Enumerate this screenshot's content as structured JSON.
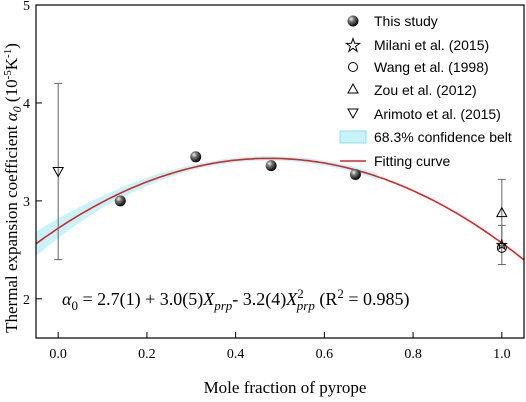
{
  "chart_data": {
    "type": "scatter",
    "title": "",
    "xlabel": "Mole fraction of pyrope",
    "ylabel_main": "Thermal expansion coefficient ",
    "ylabel_symbol": "α",
    "ylabel_sub": "0",
    "ylabel_unit_open": " (10",
    "ylabel_unit_exp1": "-5",
    "ylabel_unit_mid": "K",
    "ylabel_unit_exp2": "-1",
    "ylabel_unit_close": ")",
    "xlim": [
      -0.05,
      1.05
    ],
    "ylim": [
      1.6,
      5.0
    ],
    "xticks": [
      0.0,
      0.2,
      0.4,
      0.6,
      0.8,
      1.0
    ],
    "xtick_labels": [
      "0.0",
      "0.2",
      "0.4",
      "0.6",
      "0.8",
      "1.0"
    ],
    "yticks": [
      2,
      3,
      4,
      5
    ],
    "ytick_labels": [
      "2",
      "3",
      "4",
      "5"
    ],
    "grid": false,
    "legend_position": "top-right",
    "series": [
      {
        "name": "This study",
        "marker": "filled-sphere",
        "points": [
          {
            "x": 0.14,
            "y": 3.0,
            "err": 0.03
          },
          {
            "x": 0.31,
            "y": 3.45,
            "err": 0.03
          },
          {
            "x": 0.48,
            "y": 3.36,
            "err": 0.03
          },
          {
            "x": 0.67,
            "y": 3.27,
            "err": 0.03
          }
        ]
      },
      {
        "name": "Milani et al. (2015)",
        "marker": "star",
        "points": [
          {
            "x": 1.0,
            "y": 2.55,
            "err": 0.2
          }
        ]
      },
      {
        "name": "Wang et al. (1998)",
        "marker": "circle",
        "points": [
          {
            "x": 1.0,
            "y": 2.52,
            "err": 0.0
          }
        ]
      },
      {
        "name": "Zou et al. (2012)",
        "marker": "triangle-up",
        "points": [
          {
            "x": 1.0,
            "y": 2.88,
            "err": 0.34
          }
        ]
      },
      {
        "name": "Arimoto et al. (2015)",
        "marker": "triangle-down",
        "points": [
          {
            "x": 0.0,
            "y": 3.3,
            "err": 0.9
          }
        ]
      }
    ],
    "confidence_belt": {
      "name": "68.3% confidence belt",
      "color": "#c8f3fa",
      "half_width": [
        {
          "x": 0.0,
          "w": 0.1
        },
        {
          "x": 0.1,
          "w": 0.06
        },
        {
          "x": 0.3,
          "w": 0.025
        },
        {
          "x": 0.5,
          "w": 0.022
        },
        {
          "x": 0.7,
          "w": 0.03
        },
        {
          "x": 0.9,
          "w": 0.07
        },
        {
          "x": 1.0,
          "w": 0.1
        }
      ],
      "x_range": [
        -0.05,
        0.72
      ]
    },
    "fitting_curve": {
      "name": "Fitting curve",
      "color": "#d62728",
      "coefficients": [
        2.72,
        3.0,
        -3.15
      ]
    },
    "equation": {
      "lhs_symbol": "α",
      "lhs_sub": "0",
      "part1": " = 2.7(1) + 3.0(5)",
      "var1": "X",
      "var1_sub": "prp",
      "part2": "- 3.2(4)",
      "var2": "X",
      "var2_sup": "2",
      "var2_sub": "prp",
      "part3": " (R",
      "r_sup": "2",
      "part4": " = 0.985)"
    }
  }
}
